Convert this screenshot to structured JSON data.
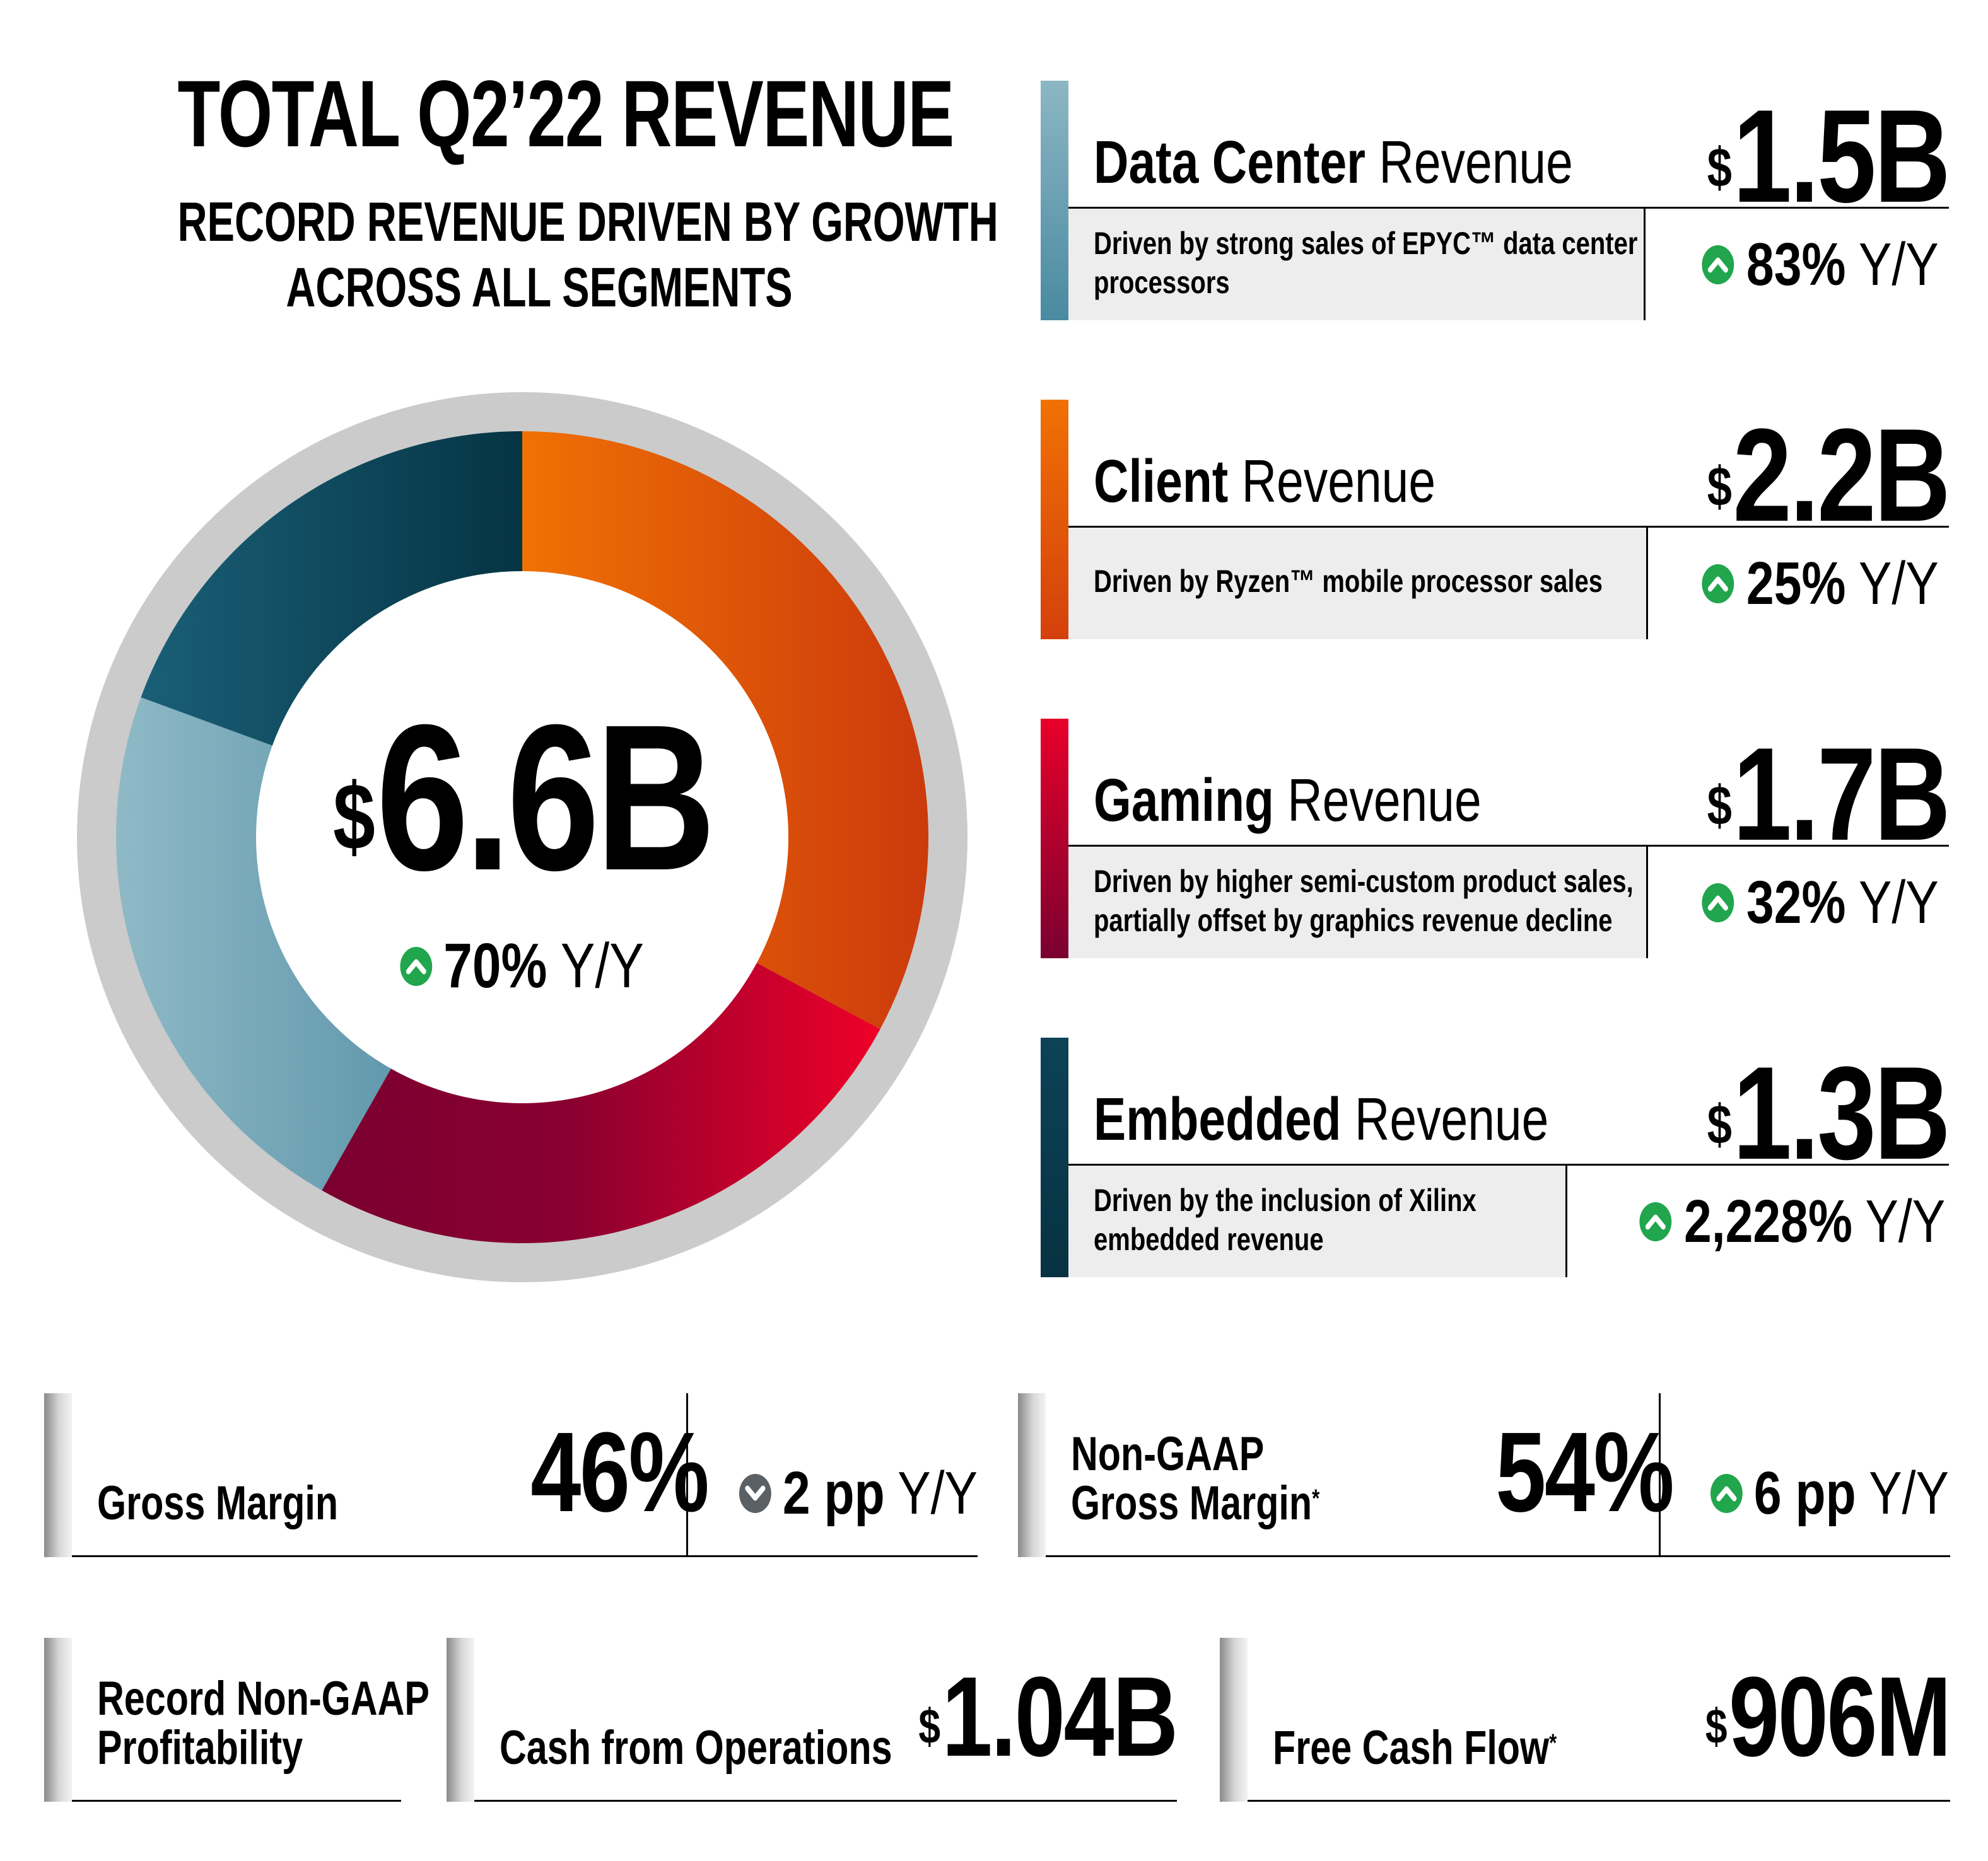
{
  "headline": {
    "title": "TOTAL Q2’22 REVENUE",
    "subtitle_line1": "RECORD REVENUE DRIVEN BY GROWTH",
    "subtitle_line2": "ACROSS ALL SEGMENTS"
  },
  "total": {
    "currency": "$",
    "value": "6.6B",
    "growth_pct": "70%",
    "growth_label": "Y/Y",
    "direction": "up"
  },
  "chart_data": {
    "type": "pie",
    "categories": [
      "Client",
      "Gaming",
      "Data Center",
      "Embedded"
    ],
    "values": [
      2.2,
      1.7,
      1.5,
      1.3
    ],
    "start_angle_deg": 0,
    "colors": [
      "#e8620f",
      "#b5002c",
      "#5f97ab",
      "#0d4257"
    ],
    "title": "",
    "legend": "none"
  },
  "segments": [
    {
      "bold": "Data Center",
      "light": " Revenue",
      "currency": "$",
      "value": "1.5B",
      "desc_line1": "Driven by strong sales of EPYC™ data center",
      "desc_line2": "processors",
      "growth_pct": "83%",
      "growth_label": "Y/Y",
      "direction": "up"
    },
    {
      "bold": "Client",
      "light": " Revenue",
      "currency": "$",
      "value": "2.2B",
      "desc_line1": "Driven by Ryzen™ mobile processor sales",
      "desc_line2": "",
      "growth_pct": "25%",
      "growth_label": "Y/Y",
      "direction": "up"
    },
    {
      "bold": "Gaming",
      "light": " Revenue",
      "currency": "$",
      "value": "1.7B",
      "desc_line1": "Driven by higher semi-custom product sales,",
      "desc_line2": "partially offset by graphics revenue decline",
      "growth_pct": "32%",
      "growth_label": "Y/Y",
      "direction": "up"
    },
    {
      "bold": "Embedded",
      "light": " Revenue",
      "currency": "$",
      "value": "1.3B",
      "desc_line1": "Driven by the inclusion of Xilinx",
      "desc_line2": "embedded revenue",
      "growth_pct": "2,228%",
      "growth_label": "Y/Y",
      "direction": "up"
    }
  ],
  "gross_margin": {
    "label": "Gross Margin",
    "value": "46%",
    "growth_pct": "2 pp",
    "growth_label": "Y/Y",
    "direction": "down"
  },
  "non_gaap_margin": {
    "label_line1": "Non-GAAP",
    "label_line2": "Gross Margin",
    "footnote": "*",
    "value": "54%",
    "growth_pct": "6 pp",
    "growth_label": "Y/Y",
    "direction": "up"
  },
  "profitability": {
    "label_line1": "Record Non-GAAP",
    "label_line2": "Profitability"
  },
  "cash_ops": {
    "label": "Cash from Operations",
    "currency": "$",
    "value": "1.04B"
  },
  "fcf": {
    "label": "Free Cash Flow",
    "footnote": "*",
    "currency": "$",
    "value": "906M"
  },
  "icons": {
    "up": "chevron-up-icon",
    "down": "chevron-down-icon",
    "up_color": "#21a54d",
    "down_color": "#5b6064"
  }
}
